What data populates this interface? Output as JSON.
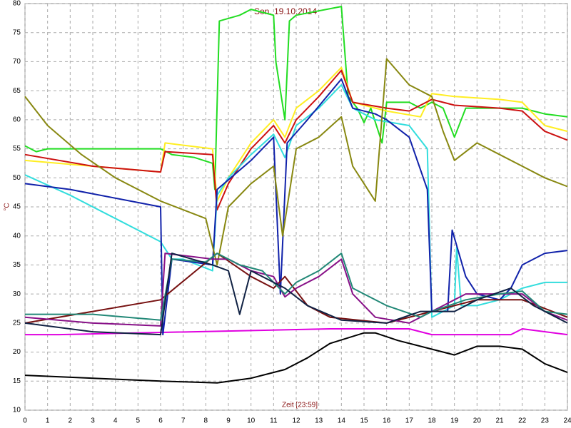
{
  "chart_data": {
    "type": "line",
    "title": "Son. 19.10.2014",
    "x_label": "Zeit [23:59]",
    "y_label": "°C",
    "xlim": [
      0,
      24
    ],
    "xticks": [
      0,
      1,
      2,
      3,
      4,
      5,
      6,
      7,
      8,
      9,
      10,
      11,
      12,
      13,
      14,
      15,
      16,
      17,
      18,
      19,
      20,
      21,
      22,
      23,
      24
    ],
    "ylim": [
      10,
      80
    ],
    "yticks": [
      10,
      15,
      20,
      25,
      30,
      35,
      40,
      45,
      50,
      55,
      60,
      65,
      70,
      75,
      80
    ],
    "grid": true,
    "series": [
      {
        "color": "#000000",
        "x": [
          0,
          3,
          6,
          8.5,
          10,
          11.5,
          12.5,
          13.5,
          15,
          15.5,
          16.5,
          18,
          19,
          20,
          21,
          22,
          23,
          24
        ],
        "values": [
          16,
          15.5,
          15,
          14.7,
          15.5,
          17,
          19,
          21.5,
          23.3,
          23.3,
          22,
          20.5,
          19.5,
          21,
          21,
          20.5,
          18,
          16.5
        ]
      },
      {
        "color": "#e000e0",
        "x": [
          0,
          1.5,
          13.5,
          17,
          18,
          21.5,
          22,
          24
        ],
        "values": [
          23,
          23,
          24,
          24,
          23,
          23,
          24,
          23
        ]
      },
      {
        "color": "#22dd22",
        "x": [
          0,
          0.5,
          1,
          6,
          6.5,
          7.5,
          8.3,
          8.4,
          8.6,
          9.5,
          10,
          11,
          11.1,
          11.5,
          11.7,
          12,
          14,
          14.3,
          14.7,
          15,
          15.3,
          15.8,
          16,
          17,
          17.5,
          18,
          18.5,
          19,
          19.5,
          21,
          22,
          23,
          24
        ],
        "values": [
          55.5,
          54.5,
          55,
          55,
          54,
          53.5,
          52.5,
          48,
          77,
          78,
          79,
          78,
          70,
          60,
          77,
          78,
          79.5,
          64,
          62,
          59.5,
          62,
          56,
          63,
          63,
          62,
          63,
          62,
          57,
          62,
          62,
          62,
          61,
          60.5
        ]
      },
      {
        "color": "#ffee22",
        "x": [
          0,
          3,
          6,
          6.2,
          8.3,
          8.5,
          9,
          10,
          11,
          11.5,
          12,
          13,
          14,
          14.5,
          16,
          17.5,
          18,
          19,
          21,
          22,
          23,
          24
        ],
        "values": [
          53,
          52,
          51,
          56,
          55,
          46,
          50,
          56,
          60,
          57,
          62,
          65,
          69,
          63,
          61.5,
          60.5,
          64.5,
          64,
          63.5,
          63,
          59,
          58
        ]
      },
      {
        "color": "#cc1111",
        "x": [
          0,
          3,
          6,
          6.2,
          8.3,
          8.5,
          9,
          10,
          11,
          11.5,
          12,
          13,
          14,
          14.5,
          16,
          17,
          18,
          19,
          21,
          22,
          23,
          24
        ],
        "values": [
          54,
          52,
          51,
          54.5,
          54,
          44.5,
          49,
          55,
          59,
          56,
          60,
          64,
          68.5,
          63,
          62,
          61.5,
          63.5,
          62.5,
          62,
          61.5,
          58,
          56.5
        ]
      },
      {
        "color": "#33dddd",
        "x": [
          0,
          2,
          4,
          6,
          6.5,
          7,
          8.3,
          8.5,
          9,
          10,
          11,
          11.5,
          12,
          13,
          14,
          14.5,
          15.5,
          17,
          17.8,
          18,
          18.5,
          19,
          19.1,
          19.3,
          20,
          21,
          22,
          23,
          24
        ],
        "values": [
          50.5,
          47,
          43,
          39,
          36,
          36,
          34,
          47,
          50,
          54,
          57.5,
          53.5,
          59,
          62,
          66,
          62,
          60,
          59,
          55,
          26,
          27,
          28,
          38,
          28,
          28,
          29,
          31,
          32,
          32
        ]
      },
      {
        "color": "#1122aa",
        "x": [
          0,
          2,
          6,
          6.1,
          6.5,
          8.3,
          8.5,
          10,
          11,
          11.3,
          11.6,
          12.5,
          14,
          14.5,
          15.5,
          16,
          17,
          17.8,
          18,
          18.7,
          18.9,
          19.5,
          20,
          21,
          21.5,
          22,
          23,
          24
        ],
        "values": [
          49,
          48,
          45,
          23,
          36,
          35,
          48,
          53,
          57,
          30,
          56,
          60,
          67,
          62,
          61,
          60,
          57,
          48,
          27,
          27,
          41,
          33,
          30,
          29,
          31,
          35,
          37,
          37.5
        ]
      },
      {
        "color": "#888811",
        "x": [
          0,
          1,
          2.5,
          4,
          6,
          8,
          8.5,
          9,
          10,
          11,
          11.4,
          12,
          13,
          14,
          14.5,
          15.5,
          16,
          17,
          18,
          18.5,
          19,
          20,
          21,
          22,
          23,
          24
        ],
        "values": [
          64,
          59,
          54,
          50,
          46,
          43,
          35,
          45,
          49,
          52,
          40,
          55,
          57,
          60.5,
          52,
          46,
          70.5,
          66,
          64,
          58,
          53,
          56,
          54,
          52,
          50,
          48.5
        ]
      },
      {
        "color": "#771111",
        "x": [
          0,
          6,
          8.5,
          10,
          11,
          11.5,
          12.5,
          13.5,
          16,
          18,
          19,
          20,
          21,
          22,
          23,
          24
        ],
        "values": [
          25,
          29,
          37,
          33,
          31,
          33,
          28,
          26,
          25,
          27,
          28,
          29,
          29,
          29,
          27.5,
          26
        ]
      },
      {
        "color": "#881188",
        "x": [
          0,
          3,
          6,
          6.2,
          8.3,
          9,
          10,
          11,
          11.5,
          12,
          13,
          14,
          14.5,
          15.5,
          17,
          18,
          19.5,
          21,
          22,
          23,
          24
        ],
        "values": [
          26,
          25,
          24.5,
          37,
          36,
          36,
          34,
          33,
          29.5,
          31,
          33,
          36,
          30,
          26,
          25,
          27,
          30,
          30,
          30,
          27,
          25.5
        ]
      },
      {
        "color": "#228877",
        "x": [
          0,
          3,
          6,
          6.5,
          8,
          8.5,
          9.5,
          10.5,
          11.5,
          12,
          13,
          14,
          14.5,
          16,
          17.5,
          18,
          19.5,
          21,
          22,
          23,
          24
        ],
        "values": [
          26.5,
          26.5,
          25.5,
          36,
          35.5,
          37,
          35,
          34,
          30,
          32,
          34,
          37,
          31,
          28,
          26,
          27,
          29,
          30,
          30.5,
          27,
          26.5
        ]
      },
      {
        "color": "#112244",
        "x": [
          0,
          3,
          6,
          6.5,
          8.3,
          9,
          9.5,
          10,
          11.5,
          12.5,
          14,
          16,
          17.5,
          19,
          20,
          21.5,
          22.5,
          23.5,
          24
        ],
        "values": [
          25,
          23.5,
          23,
          37,
          35,
          34,
          26.5,
          34,
          31,
          28,
          25.5,
          25,
          27,
          27,
          29,
          31,
          28,
          26,
          25
        ]
      }
    ]
  }
}
